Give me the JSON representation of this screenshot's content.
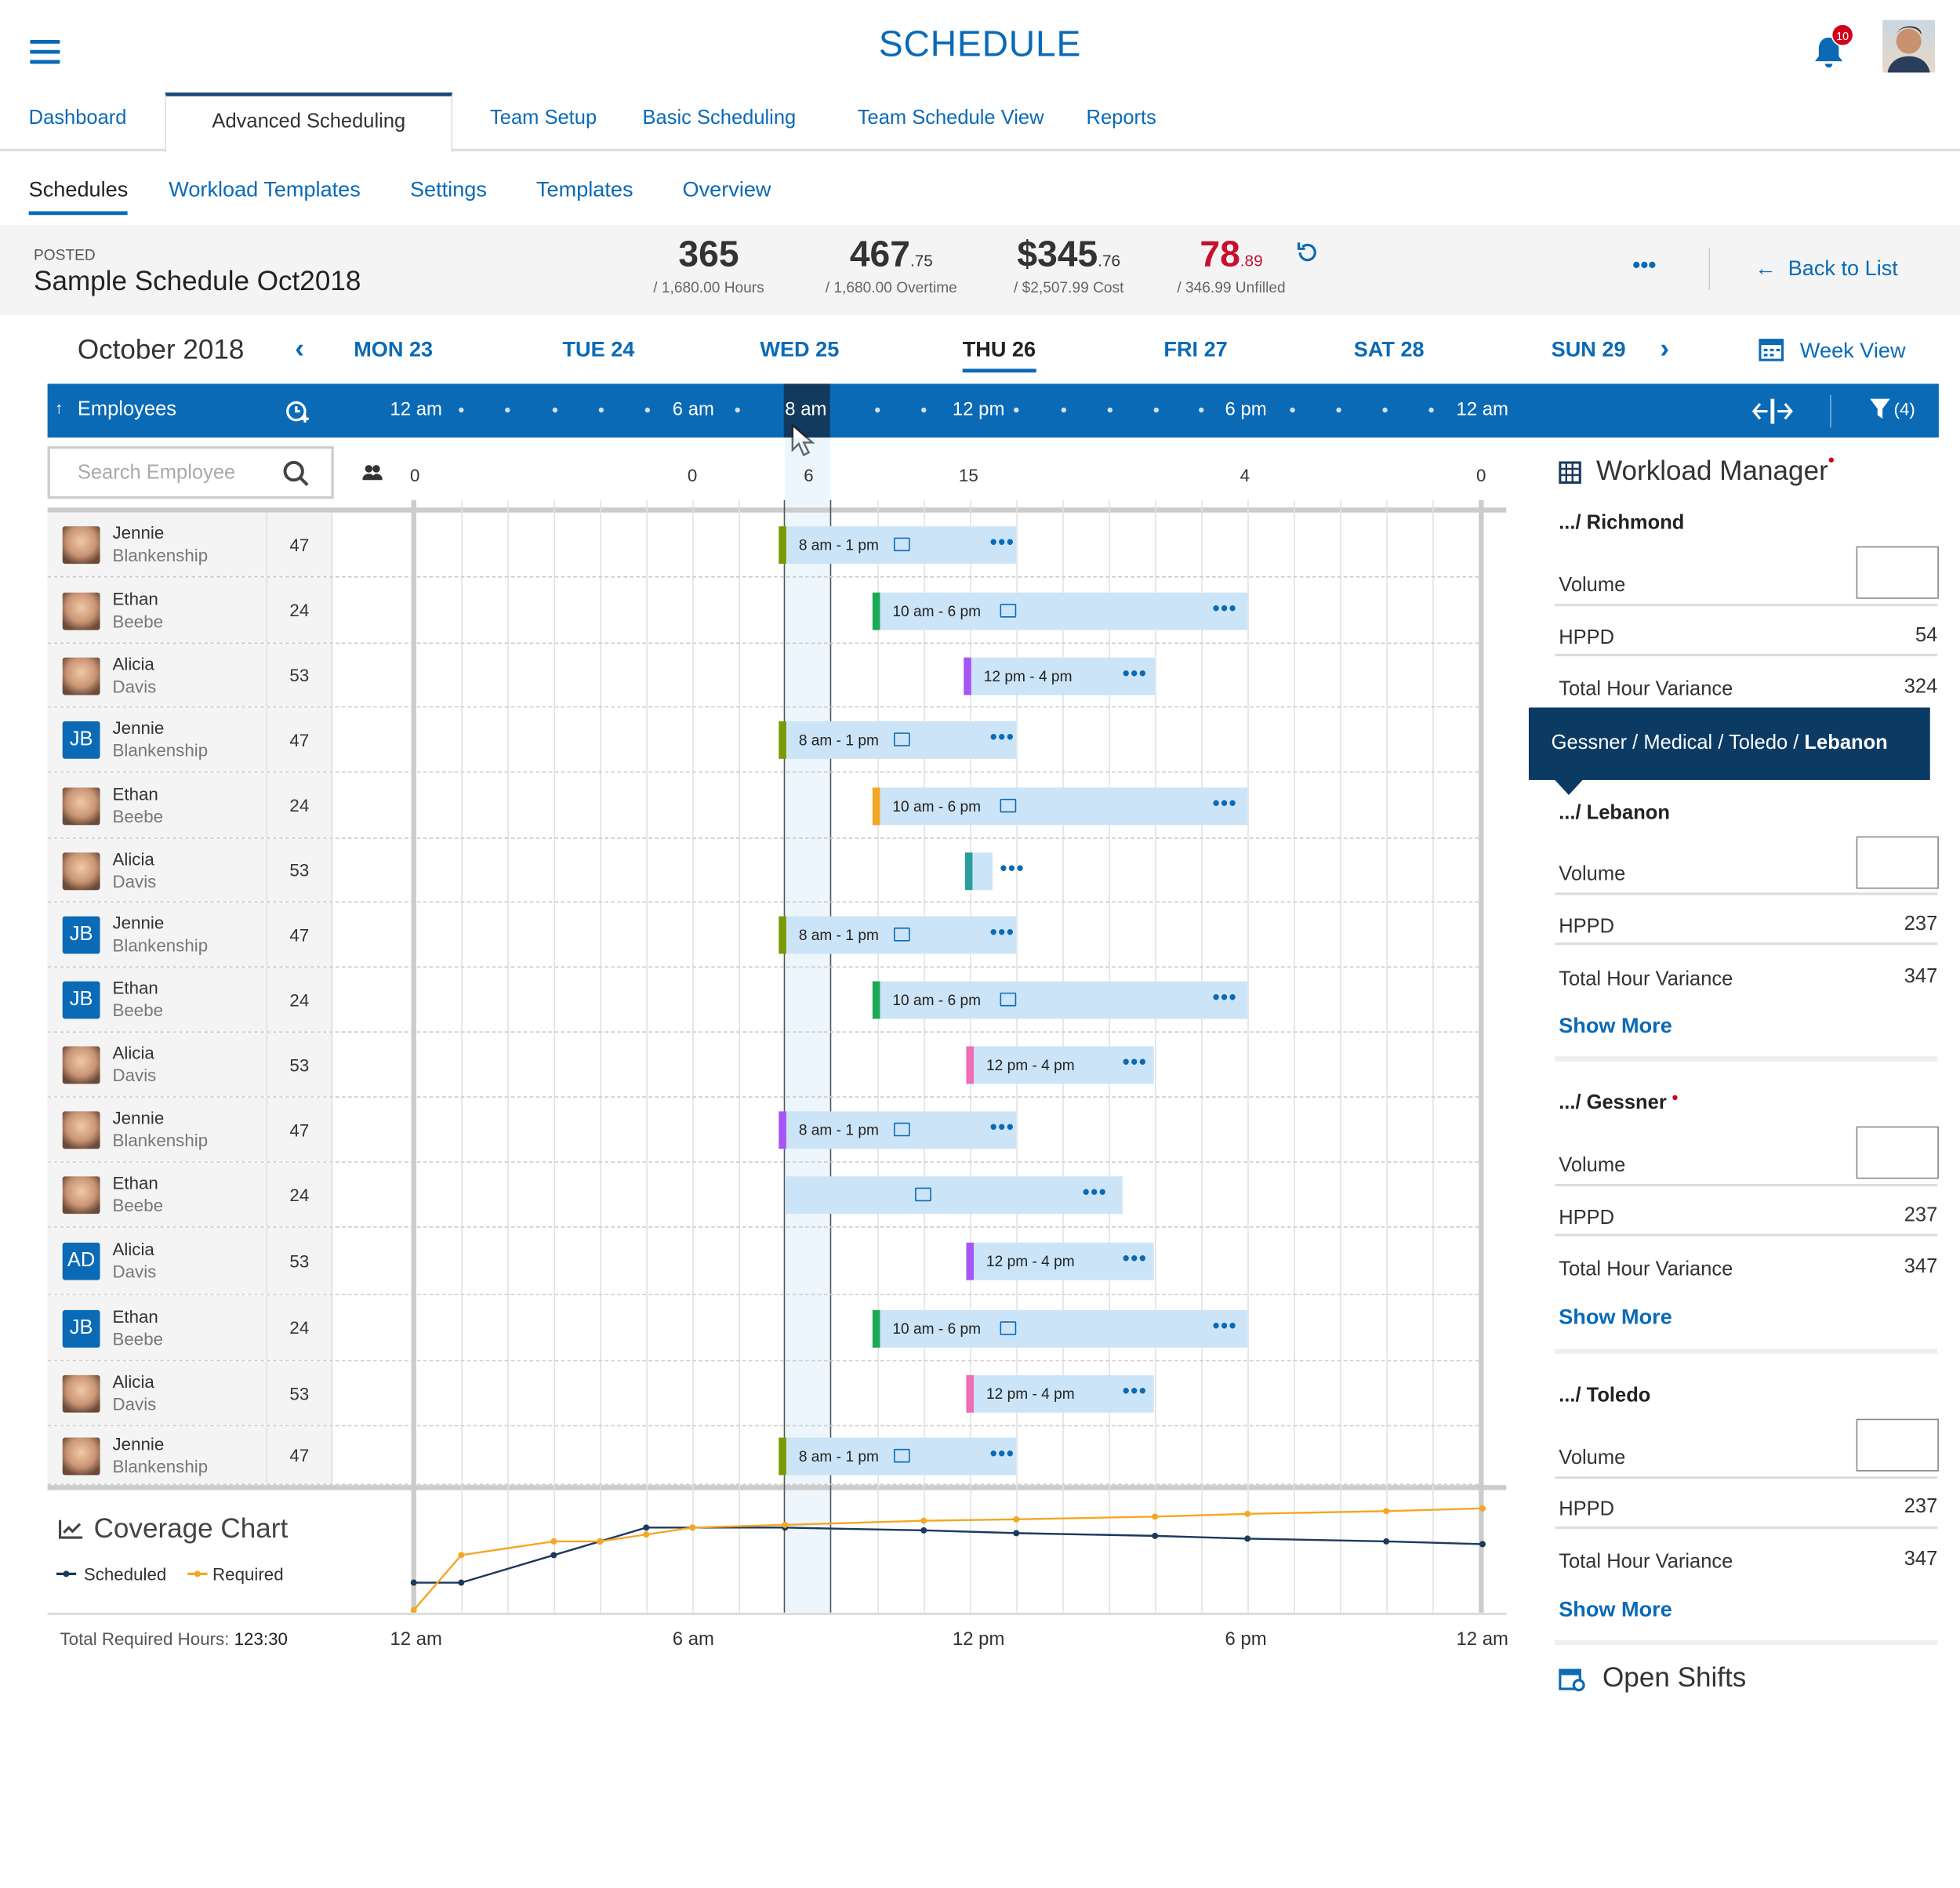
{
  "app": {
    "title": "SCHEDULE",
    "notification_count": "10"
  },
  "main_tabs": [
    "Dashboard",
    "Advanced Scheduling",
    "Team Setup",
    "Basic Scheduling",
    "Team Schedule View",
    "Reports"
  ],
  "sub_tabs": [
    "Schedules",
    "Workload Templates",
    "Settings",
    "Templates",
    "Overview"
  ],
  "schedule": {
    "status": "POSTED",
    "name": "Sample Schedule Oct2018"
  },
  "stats": [
    {
      "value": "365",
      "decimal": "",
      "sub": "/ 1,680.00 Hours"
    },
    {
      "value": "467",
      "decimal": ".75",
      "sub": "/ 1,680.00 Overtime"
    },
    {
      "value": "$345",
      "decimal": ".76",
      "sub": "/ $2,507.99 Cost"
    },
    {
      "value": "78",
      "decimal": ".89",
      "sub": "/ 346.99 Unfilled",
      "color": "#c8102e"
    }
  ],
  "actions": {
    "more": "•••",
    "back": "Back to List",
    "week_view": "Week View"
  },
  "calendar": {
    "month": "October 2018",
    "days": [
      "MON 23",
      "TUE 24",
      "WED 25",
      "THU 26",
      "FRI 27",
      "SAT 28",
      "SUN 29"
    ],
    "active_day": "THU 26"
  },
  "timeline": {
    "employees_label": "Employees",
    "time_labels": [
      "12 am",
      "6 am",
      "8 am",
      "12 pm",
      "6 pm",
      "12 am"
    ],
    "filter_count": "(4)",
    "counts": [
      "0",
      "0",
      "6",
      "15",
      "4",
      "0"
    ]
  },
  "search": {
    "placeholder": "Search Employee"
  },
  "employees": [
    {
      "first": "Jennie",
      "last": "Blankenship",
      "hours": "47",
      "avatar": "face"
    },
    {
      "first": "Ethan",
      "last": "Beebe",
      "hours": "24",
      "avatar": "face"
    },
    {
      "first": "Alicia",
      "last": "Davis",
      "hours": "53",
      "avatar": "face"
    },
    {
      "first": "Jennie",
      "last": "Blankenship",
      "hours": "47",
      "avatar": "JB"
    },
    {
      "first": "Ethan",
      "last": "Beebe",
      "hours": "24",
      "avatar": "face"
    },
    {
      "first": "Alicia",
      "last": "Davis",
      "hours": "53",
      "avatar": "face"
    },
    {
      "first": "Jennie",
      "last": "Blankenship",
      "hours": "47",
      "avatar": "JB"
    },
    {
      "first": "Ethan",
      "last": "Beebe",
      "hours": "24",
      "avatar": "JB"
    },
    {
      "first": "Alicia",
      "last": "Davis",
      "hours": "53",
      "avatar": "face"
    },
    {
      "first": "Jennie",
      "last": "Blankenship",
      "hours": "47",
      "avatar": "face"
    },
    {
      "first": "Ethan",
      "last": "Beebe",
      "hours": "24",
      "avatar": "face"
    },
    {
      "first": "Alicia",
      "last": "Davis",
      "hours": "53",
      "avatar": "AD"
    },
    {
      "first": "Ethan",
      "last": "Beebe",
      "hours": "24",
      "avatar": "JB"
    },
    {
      "first": "Alicia",
      "last": "Davis",
      "hours": "53",
      "avatar": "face"
    },
    {
      "first": "Jennie",
      "last": "Blankenship",
      "hours": "47",
      "avatar": "face"
    }
  ],
  "shifts": [
    {
      "label": "8 am - 1 pm",
      "color": "#7a9a01",
      "chat": true
    },
    {
      "label": "10 am - 6 pm",
      "color": "#1aaa55",
      "chat": true
    },
    {
      "label": "12 pm - 4 pm",
      "color": "#a855f7",
      "chat": false
    },
    {
      "label": "8 am - 1 pm",
      "color": "#7a9a01",
      "chat": true
    },
    {
      "label": "10 am - 6 pm",
      "color": "#f5a623",
      "chat": true
    },
    {
      "label": "",
      "color": "#2a9d9c",
      "chat": false
    },
    {
      "label": "8 am - 1 pm",
      "color": "#7a9a01",
      "chat": true
    },
    {
      "label": "10 am - 6 pm",
      "color": "#1aaa55",
      "chat": true
    },
    {
      "label": "12 pm - 4 pm",
      "color": "#f06cb4",
      "chat": false
    },
    {
      "label": "8 am - 1 pm",
      "color": "#a855f7",
      "chat": true
    },
    {
      "label": "",
      "color": "#cce4f7",
      "chat": true
    },
    {
      "label": "12 pm - 4 pm",
      "color": "#a855f7",
      "chat": false
    },
    {
      "label": "10 am - 6 pm",
      "color": "#1aaa55",
      "chat": true
    },
    {
      "label": "12 pm - 4 pm",
      "color": "#f06cb4",
      "chat": false
    },
    {
      "label": "8 am - 1 pm",
      "color": "#7a9a01",
      "chat": true
    }
  ],
  "workload": {
    "title": "Workload Manager",
    "tooltip_path": "Gessner / Medical / Toledo / ",
    "tooltip_last": "Lebanon",
    "sections": [
      {
        "name": ".../ Richmond",
        "volume_label": "Volume",
        "hppd_label": "HPPD",
        "hppd": "54",
        "thv_label": "Total Hour Variance",
        "thv": "324",
        "show_more": ""
      },
      {
        "name": ".../ Lebanon",
        "volume_label": "Volume",
        "hppd_label": "HPPD",
        "hppd": "237",
        "thv_label": "Total Hour Variance",
        "thv": "347",
        "show_more": "Show More"
      },
      {
        "name": ".../ Gessner",
        "volume_label": "Volume",
        "hppd_label": "HPPD",
        "hppd": "237",
        "thv_label": "Total Hour Variance",
        "thv": "347",
        "show_more": "Show More"
      },
      {
        "name": ".../ Toledo",
        "volume_label": "Volume",
        "hppd_label": "HPPD",
        "hppd": "237",
        "thv_label": "Total Hour Variance",
        "thv": "347",
        "show_more": "Show More"
      }
    ],
    "open_shifts": "Open Shifts"
  },
  "coverage": {
    "title": "Coverage Chart",
    "legend": [
      "Scheduled",
      "Required"
    ],
    "total_label": "Total Required Hours:",
    "total_value": "123:30",
    "x_ticks": [
      "12 am",
      "6 am",
      "12 pm",
      "6 pm",
      "12 am"
    ]
  },
  "chart_data": {
    "type": "line",
    "title": "Coverage Chart",
    "x": [
      "12 am",
      "2 am",
      "4 am",
      "5 am",
      "6 am",
      "7 am",
      "8 am",
      "11 am",
      "12 pm",
      "3 pm",
      "6 pm",
      "9 pm",
      "12 am"
    ],
    "series": [
      {
        "name": "Scheduled",
        "color": "#1b3a5c",
        "values": [
          2,
          2,
          4,
          5,
          6,
          6,
          6,
          5.8,
          5.6,
          5.4,
          5.2,
          5.0,
          4.8
        ]
      },
      {
        "name": "Required",
        "color": "#f5a623",
        "values": [
          0,
          4,
          5,
          5,
          5.5,
          6,
          6.2,
          6.5,
          6.6,
          6.8,
          7,
          7.2,
          7.4
        ]
      }
    ]
  }
}
